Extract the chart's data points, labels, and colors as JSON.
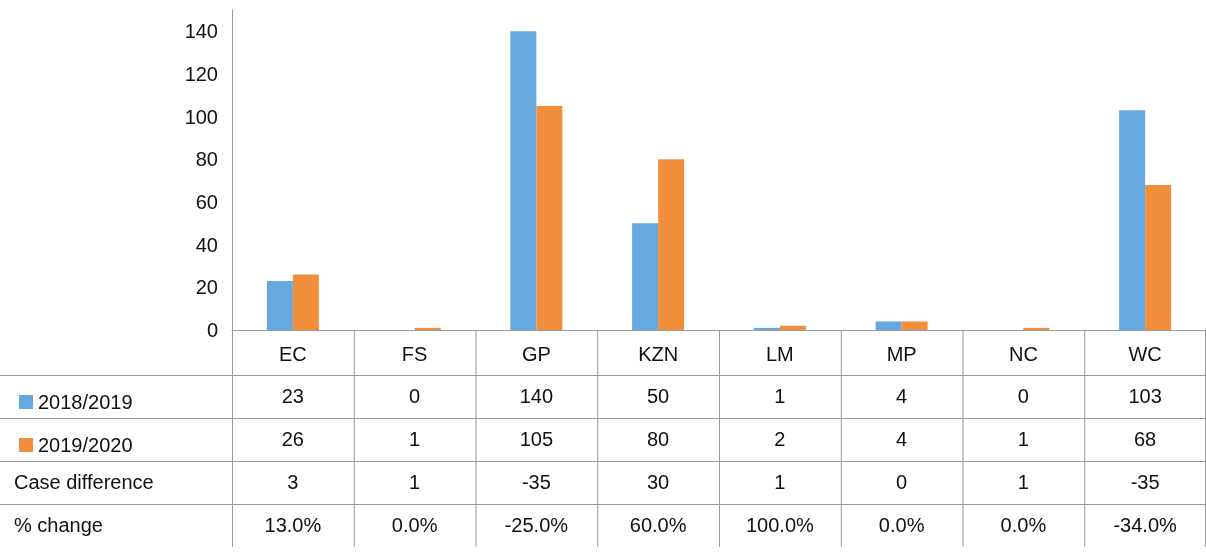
{
  "chart_data": {
    "type": "bar",
    "categories": [
      "EC",
      "FS",
      "GP",
      "KZN",
      "LM",
      "MP",
      "NC",
      "WC"
    ],
    "series": [
      {
        "name": "2018/2019",
        "color": "#65a9e0",
        "values": [
          23,
          0,
          140,
          50,
          1,
          4,
          0,
          103
        ]
      },
      {
        "name": "2019/2020",
        "color": "#f28f3d",
        "values": [
          26,
          1,
          105,
          80,
          2,
          4,
          1,
          68
        ]
      }
    ],
    "ylim": [
      0,
      150
    ],
    "yticks": [
      0,
      20,
      40,
      60,
      80,
      100,
      120,
      140
    ],
    "data_labels": true,
    "legend": "bottom left",
    "annotations": [
      "Case difference",
      "3",
      "1",
      "-35",
      "30",
      "1",
      "0",
      "1",
      "-35",
      "% change",
      "13.0%",
      "0.0%",
      "-25.0%",
      "60.0%",
      "100.0%",
      "0.0%",
      "0.0%",
      "-34.0%"
    ]
  }
}
